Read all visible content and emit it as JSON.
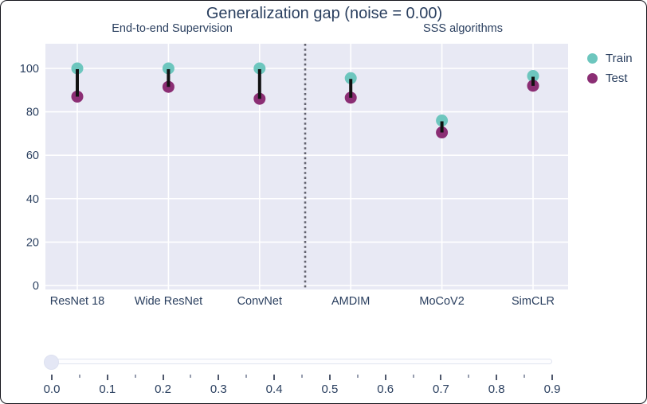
{
  "chart_data": {
    "type": "scatter",
    "title": "Generalization gap (noise = 0.00)",
    "categories": [
      "ResNet 18",
      "Wide ResNet",
      "ConvNet",
      "AMDIM",
      "MoCoV2",
      "SimCLR"
    ],
    "series": [
      {
        "name": "Train",
        "color": "#6dc6be",
        "values": [
          100,
          100,
          100,
          95.5,
          76,
          96.5
        ]
      },
      {
        "name": "Test",
        "color": "#8b2e74",
        "values": [
          87,
          91.5,
          86,
          86.5,
          70.5,
          92
        ]
      }
    ],
    "group_labels": [
      "End-to-end Supervision",
      "SSS algorithms"
    ],
    "separator_after_category": "ConvNet",
    "separator_style": "dotted",
    "separator_color": "#62626e",
    "connector_color": "#111111",
    "ylim": [
      0,
      112
    ],
    "yticks": [
      0,
      20,
      40,
      60,
      80,
      100
    ],
    "grid": true,
    "legend_position": "top-right",
    "plot_bg": "#e8e9f4",
    "gridline_color": "#ffffff",
    "text_color": "#2a3f5f"
  },
  "slider": {
    "value": "0.0",
    "labels": [
      "0.0",
      "0.1",
      "0.2",
      "0.3",
      "0.4",
      "0.5",
      "0.6",
      "0.7",
      "0.8",
      "0.9"
    ],
    "minor_ticks_between": true
  }
}
